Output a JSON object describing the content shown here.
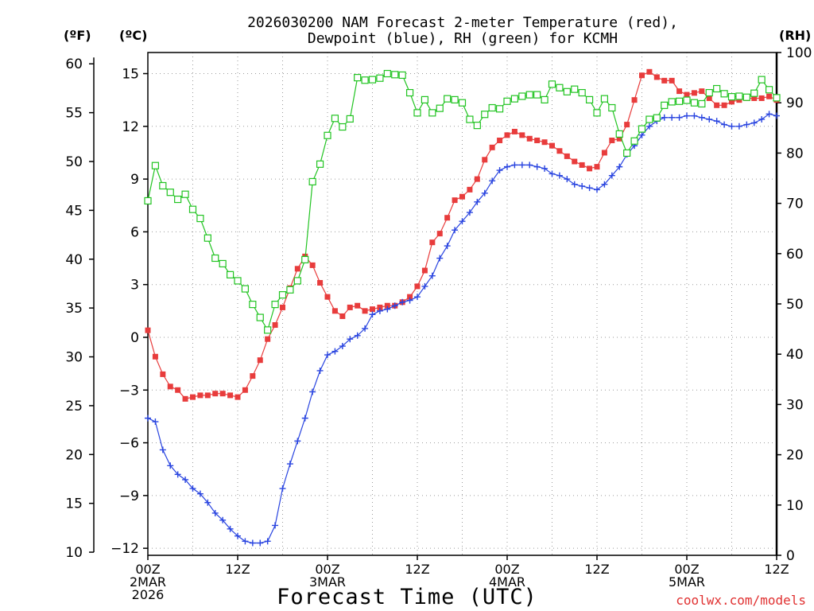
{
  "chart_data": {
    "type": "line",
    "title_lines": [
      "2026030200 NAM Forecast 2-meter Temperature (red),",
      "Dewpoint (blue), RH (green) for KCMH"
    ],
    "xlabel": "Forecast Time (UTC)",
    "credit": "coolwx.com/models",
    "x_range_hours": [
      0,
      84
    ],
    "x_ticks": [
      {
        "hour": 0,
        "lines": [
          "00Z",
          "2MAR",
          "2026"
        ]
      },
      {
        "hour": 12,
        "lines": [
          "12Z"
        ]
      },
      {
        "hour": 24,
        "lines": [
          "00Z",
          "3MAR"
        ]
      },
      {
        "hour": 36,
        "lines": [
          "12Z"
        ]
      },
      {
        "hour": 48,
        "lines": [
          "00Z",
          "4MAR"
        ]
      },
      {
        "hour": 60,
        "lines": [
          "12Z"
        ]
      },
      {
        "hour": 72,
        "lines": [
          "00Z",
          "5MAR"
        ]
      },
      {
        "hour": 84,
        "lines": [
          "12Z"
        ]
      }
    ],
    "axes": {
      "celsius": {
        "unit_label": "(ºC)",
        "range": [
          -12.4,
          16.2
        ],
        "ticks": [
          -12,
          -9,
          -6,
          -3,
          0,
          3,
          6,
          9,
          12,
          15
        ]
      },
      "fahrenheit": {
        "unit_label": "(ºF)",
        "ticks": [
          10,
          15,
          20,
          25,
          30,
          35,
          40,
          45,
          50,
          55,
          60
        ]
      },
      "rh": {
        "unit_label": "(RH)",
        "range": [
          0,
          100
        ],
        "ticks": [
          0,
          10,
          20,
          30,
          40,
          50,
          60,
          70,
          80,
          90,
          100
        ]
      }
    },
    "grid": true,
    "series": [
      {
        "name": "Temperature",
        "axis": "celsius",
        "color": "#e83c3c",
        "marker": "filled-square",
        "x": [
          0,
          1,
          2,
          3,
          4,
          5,
          6,
          7,
          8,
          9,
          10,
          11,
          12,
          13,
          14,
          15,
          16,
          17,
          18,
          19,
          20,
          21,
          22,
          23,
          24,
          25,
          26,
          27,
          28,
          29,
          30,
          31,
          32,
          33,
          34,
          35,
          36,
          37,
          38,
          39,
          40,
          41,
          42,
          43,
          44,
          45,
          46,
          47,
          48,
          49,
          50,
          51,
          52,
          53,
          54,
          55,
          56,
          57,
          58,
          59,
          60,
          61,
          62,
          63,
          64,
          65,
          66,
          67,
          68,
          69,
          70,
          71,
          72,
          73,
          74,
          75,
          76,
          77,
          78,
          79,
          80,
          81,
          82,
          83,
          84
        ],
        "y": [
          0.4,
          -1.1,
          -2.1,
          -2.8,
          -3.0,
          -3.5,
          -3.4,
          -3.3,
          -3.3,
          -3.2,
          -3.2,
          -3.3,
          -3.4,
          -3.0,
          -2.2,
          -1.3,
          -0.1,
          0.7,
          1.7,
          2.8,
          3.9,
          4.6,
          4.1,
          3.1,
          2.3,
          1.5,
          1.2,
          1.7,
          1.8,
          1.5,
          1.6,
          1.7,
          1.8,
          1.8,
          2.0,
          2.3,
          2.9,
          3.8,
          5.4,
          5.9,
          6.8,
          7.8,
          8.0,
          8.4,
          9.0,
          10.1,
          10.8,
          11.2,
          11.5,
          11.7,
          11.5,
          11.3,
          11.2,
          11.1,
          10.9,
          10.6,
          10.3,
          10.0,
          9.8,
          9.6,
          9.7,
          10.5,
          11.2,
          11.3,
          12.1,
          13.5,
          14.9,
          15.1,
          14.8,
          14.6,
          14.6,
          14.0,
          13.8,
          13.9,
          14.0,
          13.6,
          13.2,
          13.2,
          13.4,
          13.5,
          13.6,
          13.6,
          13.6,
          13.7,
          13.5
        ]
      },
      {
        "name": "Dewpoint",
        "axis": "celsius",
        "color": "#2a45e0",
        "marker": "plus",
        "x": [
          0,
          1,
          2,
          3,
          4,
          5,
          6,
          7,
          8,
          9,
          10,
          11,
          12,
          13,
          14,
          15,
          16,
          17,
          18,
          19,
          20,
          21,
          22,
          23,
          24,
          25,
          26,
          27,
          28,
          29,
          30,
          31,
          32,
          33,
          34,
          35,
          36,
          37,
          38,
          39,
          40,
          41,
          42,
          43,
          44,
          45,
          46,
          47,
          48,
          49,
          50,
          51,
          52,
          53,
          54,
          55,
          56,
          57,
          58,
          59,
          60,
          61,
          62,
          63,
          64,
          65,
          66,
          67,
          68,
          69,
          70,
          71,
          72,
          73,
          74,
          75,
          76,
          77,
          78,
          79,
          80,
          81,
          82,
          83,
          84
        ],
        "y": [
          -4.6,
          -4.8,
          -6.4,
          -7.3,
          -7.8,
          -8.1,
          -8.6,
          -8.9,
          -9.4,
          -10.0,
          -10.4,
          -10.9,
          -11.3,
          -11.6,
          -11.7,
          -11.7,
          -11.6,
          -10.7,
          -8.6,
          -7.2,
          -5.9,
          -4.6,
          -3.1,
          -1.9,
          -1.0,
          -0.8,
          -0.5,
          -0.1,
          0.1,
          0.5,
          1.3,
          1.5,
          1.6,
          1.8,
          2.0,
          2.1,
          2.3,
          2.9,
          3.5,
          4.5,
          5.2,
          6.1,
          6.6,
          7.1,
          7.7,
          8.2,
          8.9,
          9.5,
          9.7,
          9.8,
          9.8,
          9.8,
          9.7,
          9.6,
          9.3,
          9.2,
          9.0,
          8.7,
          8.6,
          8.5,
          8.4,
          8.7,
          9.2,
          9.7,
          10.4,
          10.9,
          11.5,
          12.0,
          12.3,
          12.5,
          12.5,
          12.5,
          12.6,
          12.6,
          12.5,
          12.4,
          12.3,
          12.1,
          12.0,
          12.0,
          12.1,
          12.2,
          12.4,
          12.7,
          12.6
        ]
      },
      {
        "name": "RH",
        "axis": "rh",
        "color": "#22c422",
        "marker": "open-square",
        "x": [
          0,
          1,
          2,
          3,
          4,
          5,
          6,
          7,
          8,
          9,
          10,
          11,
          12,
          13,
          14,
          15,
          16,
          17,
          18,
          19,
          20,
          21,
          22,
          23,
          24,
          25,
          26,
          27,
          28,
          29,
          30,
          31,
          32,
          33,
          34,
          35,
          36,
          37,
          38,
          39,
          40,
          41,
          42,
          43,
          44,
          45,
          46,
          47,
          48,
          49,
          50,
          51,
          52,
          53,
          54,
          55,
          56,
          57,
          58,
          59,
          60,
          61,
          62,
          63,
          64,
          65,
          66,
          67,
          68,
          69,
          70,
          71,
          72,
          73,
          74,
          75,
          76,
          77,
          78,
          79,
          80,
          81,
          82,
          83,
          84
        ],
        "y": [
          70.5,
          77.5,
          73.5,
          72.2,
          70.8,
          71.8,
          68.8,
          67.0,
          63.1,
          59.1,
          58.0,
          55.8,
          54.6,
          53.0,
          49.9,
          47.3,
          44.8,
          49.9,
          51.8,
          52.8,
          54.6,
          58.8,
          74.3,
          77.8,
          83.5,
          86.9,
          85.2,
          86.8,
          95.0,
          94.5,
          94.6,
          94.9,
          95.8,
          95.6,
          95.5,
          92.0,
          88.0,
          90.6,
          88.0,
          88.9,
          90.8,
          90.6,
          90.0,
          86.7,
          85.5,
          87.7,
          89.0,
          88.8,
          90.3,
          90.8,
          91.3,
          91.6,
          91.6,
          90.6,
          93.7,
          93.0,
          92.2,
          92.7,
          92.0,
          90.6,
          88.0,
          90.8,
          89.0,
          83.8,
          80.0,
          82.4,
          84.8,
          86.7,
          87.0,
          89.5,
          90.2,
          90.3,
          90.5,
          90.0,
          89.8,
          92.0,
          92.8,
          91.8,
          91.2,
          91.3,
          91.1,
          91.9,
          94.6,
          92.6,
          91.0
        ]
      }
    ]
  }
}
